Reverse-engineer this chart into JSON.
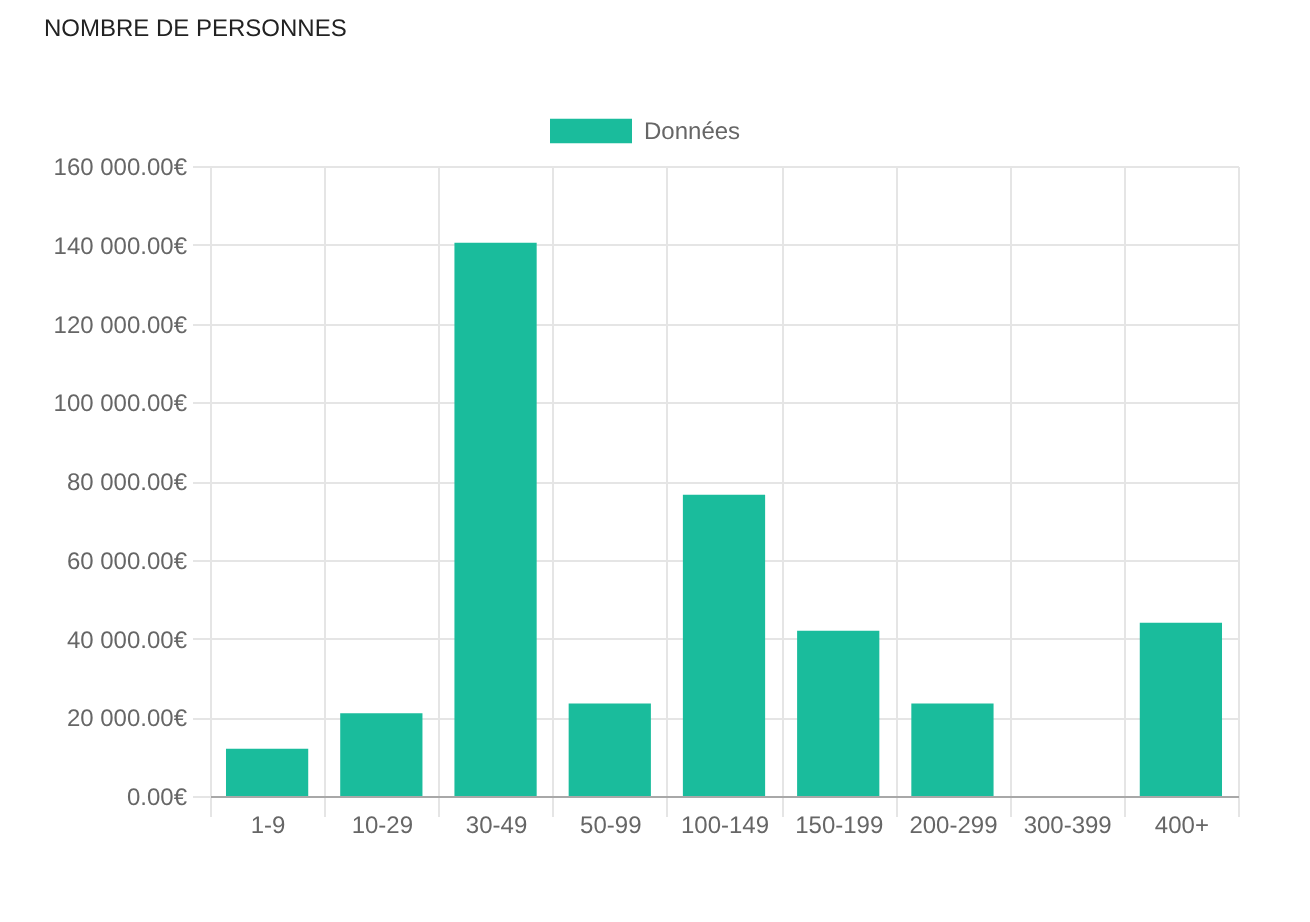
{
  "chart_data": {
    "type": "bar",
    "title": "NOMBRE DE PERSONNES",
    "categories": [
      "1-9",
      "10-29",
      "30-49",
      "50-99",
      "100-149",
      "150-199",
      "200-299",
      "300-399",
      "400+"
    ],
    "series": [
      {
        "name": "Données",
        "color": "#1abc9c",
        "values": [
          12000,
          21000,
          140500,
          23500,
          76500,
          42000,
          23500,
          0,
          44000
        ]
      }
    ],
    "ylim": [
      0,
      160000
    ],
    "yticks": [
      {
        "value": 0,
        "label": "0.00€"
      },
      {
        "value": 20000,
        "label": "20 000.00€"
      },
      {
        "value": 40000,
        "label": "40 000.00€"
      },
      {
        "value": 60000,
        "label": "60 000.00€"
      },
      {
        "value": 80000,
        "label": "80 000.00€"
      },
      {
        "value": 100000,
        "label": "100 000.00€"
      },
      {
        "value": 120000,
        "label": "120 000.00€"
      },
      {
        "value": 140000,
        "label": "140 000.00€"
      },
      {
        "value": 160000,
        "label": "160 000.00€"
      }
    ],
    "grid": true,
    "legend": "top"
  }
}
